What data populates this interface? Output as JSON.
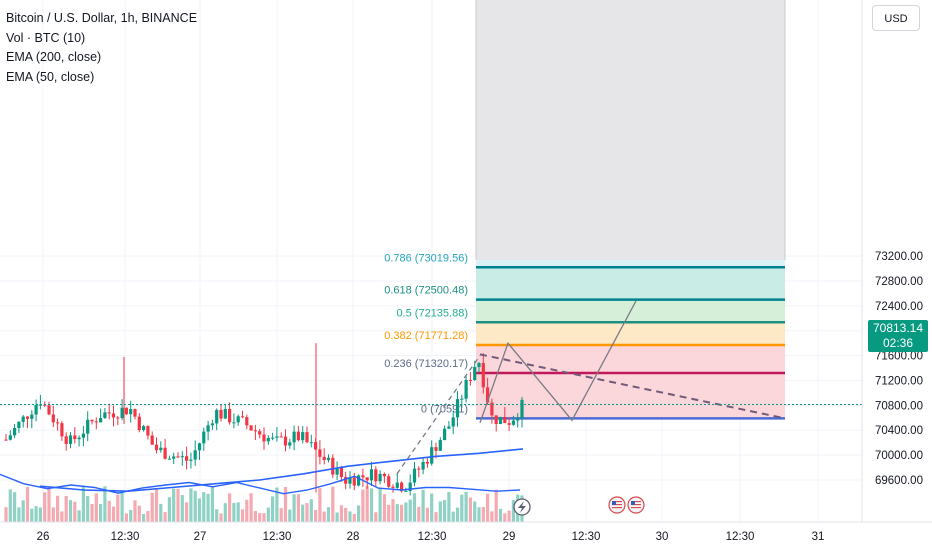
{
  "legend": {
    "symbol": "Bitcoin / U.S. Dollar, 1h, BINANCE",
    "volume": "Vol · BTC (10)",
    "ema200": "EMA (200, close)",
    "ema50": "EMA (50, close)"
  },
  "currency_button": "USD",
  "last_price": {
    "value": "70813.14",
    "countdown": "02:36",
    "color": "#089981"
  },
  "colors": {
    "up": "#089981",
    "down": "#f23645",
    "ema200": "#2962ff",
    "pattern": "#787b86",
    "grid": "#f0f3fa",
    "axis_text": "#131722"
  },
  "chart_data": {
    "type": "candlestick",
    "y_axis": {
      "ticks": [
        "69600.00",
        "70000.00",
        "70400.00",
        "70800.00",
        "71200.00",
        "71600.00",
        "72000.00",
        "72400.00",
        "72800.00",
        "73200.00"
      ],
      "ylim": [
        69350,
        73280
      ]
    },
    "x_axis": {
      "ticks": [
        "26",
        "12:30",
        "27",
        "12:30",
        "28",
        "12:30",
        "29",
        "12:30",
        "30",
        "12:30",
        "31"
      ]
    },
    "fibonacci": [
      {
        "ratio": 0.786,
        "label": "0.786 (73019.56)",
        "price": 73019.56,
        "line": "#00838f",
        "fill": "#d9f2f7",
        "text": "#26a4bf"
      },
      {
        "ratio": 0.618,
        "label": "0.618 (72500.48)",
        "price": 72500.48,
        "line": "#00838f",
        "fill": "#c9ece6",
        "text": "#1e8f83"
      },
      {
        "ratio": 0.5,
        "label": "0.5 (72135.88)",
        "price": 72135.88,
        "line": "#1e8f83",
        "fill": "#d6efd8",
        "text": "#22ab94"
      },
      {
        "ratio": 0.382,
        "label": "0.382 (71771.28)",
        "price": 71771.28,
        "line": "#ff9800",
        "fill": "#fde9c6",
        "text": "#ff9800"
      },
      {
        "ratio": 0.236,
        "label": "0.236 (71320.17)",
        "price": 71320.17,
        "line": "#c2185b",
        "fill": "#fbd6da",
        "text": "#5d6b8a"
      },
      {
        "ratio": 0,
        "label": "0 (70591)",
        "price": 70591,
        "line": "#4a6cd4",
        "fill": "",
        "text": "#5d6b8a"
      }
    ],
    "fib_top_fill": "#e6e6e8",
    "pattern_path": [
      [
        71590,
        "l"
      ],
      [
        70520,
        "l"
      ],
      [
        71800,
        "l"
      ],
      [
        70560,
        "l"
      ],
      [
        72480,
        "l"
      ]
    ],
    "trend_line": {
      "from": 71620,
      "to": 70591
    },
    "ema200_values": [
      69500,
      69440,
      69420,
      69480,
      69540,
      69600,
      69700,
      69820,
      69900,
      69980,
      70030,
      70100
    ],
    "ema50_values": [
      69690,
      69540,
      69460,
      69520,
      69480,
      69390,
      69470,
      69520,
      69560,
      69490,
      69560,
      69470,
      69380,
      69440,
      69540,
      69660,
      69470,
      69440,
      69480,
      69480,
      69450,
      69420,
      69440
    ],
    "volume": [],
    "event_icons": [
      "flag-us-icon",
      "flag-us-icon"
    ],
    "events": [
      "lightning-icon"
    ]
  }
}
